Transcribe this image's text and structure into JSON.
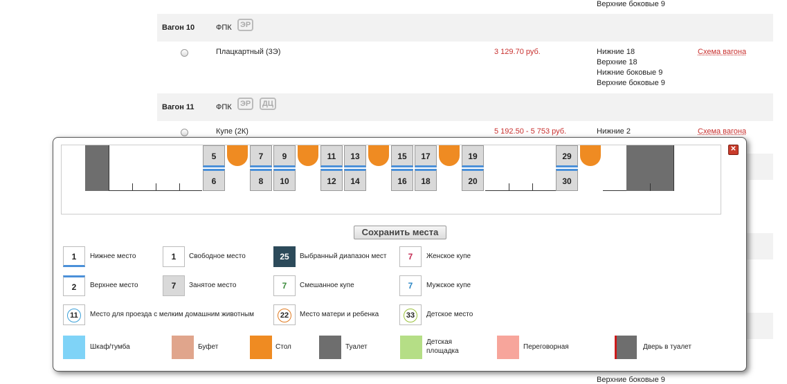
{
  "top_row": {
    "seats_text": "Верхние боковые 9"
  },
  "wagon10": {
    "header": {
      "label": "Вагон 10",
      "company": "ФПК",
      "badges": [
        "ЭР"
      ]
    },
    "row": {
      "class": "Плацкартный (3Э)",
      "price": "3 129.70 руб.",
      "seats": [
        "Нижние 18",
        "Верхние 18",
        "Нижние боковые 9",
        "Верхние боковые 9"
      ],
      "scheme_link": "Схема вагона"
    }
  },
  "wagon11": {
    "header": {
      "label": "Вагон 11",
      "company": "ФПК",
      "badges": [
        "ЭР",
        "ДЦ"
      ]
    },
    "row": {
      "class": "Купе (2К)",
      "price": "5 192.50 - 5 753 руб.",
      "seats": [
        "Нижние 2"
      ],
      "scheme_link": "Схема вагона"
    }
  },
  "bottom_row": {
    "seats_text": "Верхние боковые 9"
  },
  "modal": {
    "close_label": "✕",
    "upper_seats": [
      "5",
      "7",
      "9",
      "11",
      "13",
      "15",
      "17",
      "19",
      "29"
    ],
    "lower_seats": [
      "6",
      "8",
      "10",
      "12",
      "14",
      "16",
      "18",
      "20",
      "30"
    ],
    "save_button": "Сохранить места",
    "legend": {
      "lower_seat": {
        "num": "1",
        "label": "Нижнее место"
      },
      "free_seat": {
        "num": "1",
        "label": "Свободное место"
      },
      "selected_range": {
        "num": "25",
        "label": "Выбранный диапазон мест"
      },
      "female": {
        "num": "7",
        "label": "Женское купе"
      },
      "upper_seat": {
        "num": "2",
        "label": "Верхнее место"
      },
      "occupied": {
        "num": "7",
        "label": "Занятое место"
      },
      "mixed": {
        "num": "7",
        "label": "Смешанное купе"
      },
      "male": {
        "num": "7",
        "label": "Мужское купе"
      },
      "pets": {
        "num": "11",
        "label": "Место для проезда с мелким домашним животным"
      },
      "mother_child": {
        "num": "22",
        "label": "Место матери и ребенка"
      },
      "kids": {
        "num": "33",
        "label": "Детское место"
      },
      "wardrobe": {
        "label": "Шкаф/тумба",
        "color": "#7fd3f7"
      },
      "buffet": {
        "label": "Буфет",
        "color": "#e0a58c"
      },
      "table": {
        "label": "Стол",
        "color": "#ef8b22"
      },
      "toilet": {
        "label": "Туалет",
        "color": "#6e6e6e"
      },
      "kids_area": {
        "label1": "Детская",
        "label2": "площадка",
        "color": "#b5de86"
      },
      "meeting": {
        "label": "Переговорная",
        "color": "#f7a59b"
      },
      "toilet_door": {
        "label": "Дверь в туалет",
        "color": "#6e6e6e",
        "door_color": "#cc1a1a"
      }
    }
  }
}
